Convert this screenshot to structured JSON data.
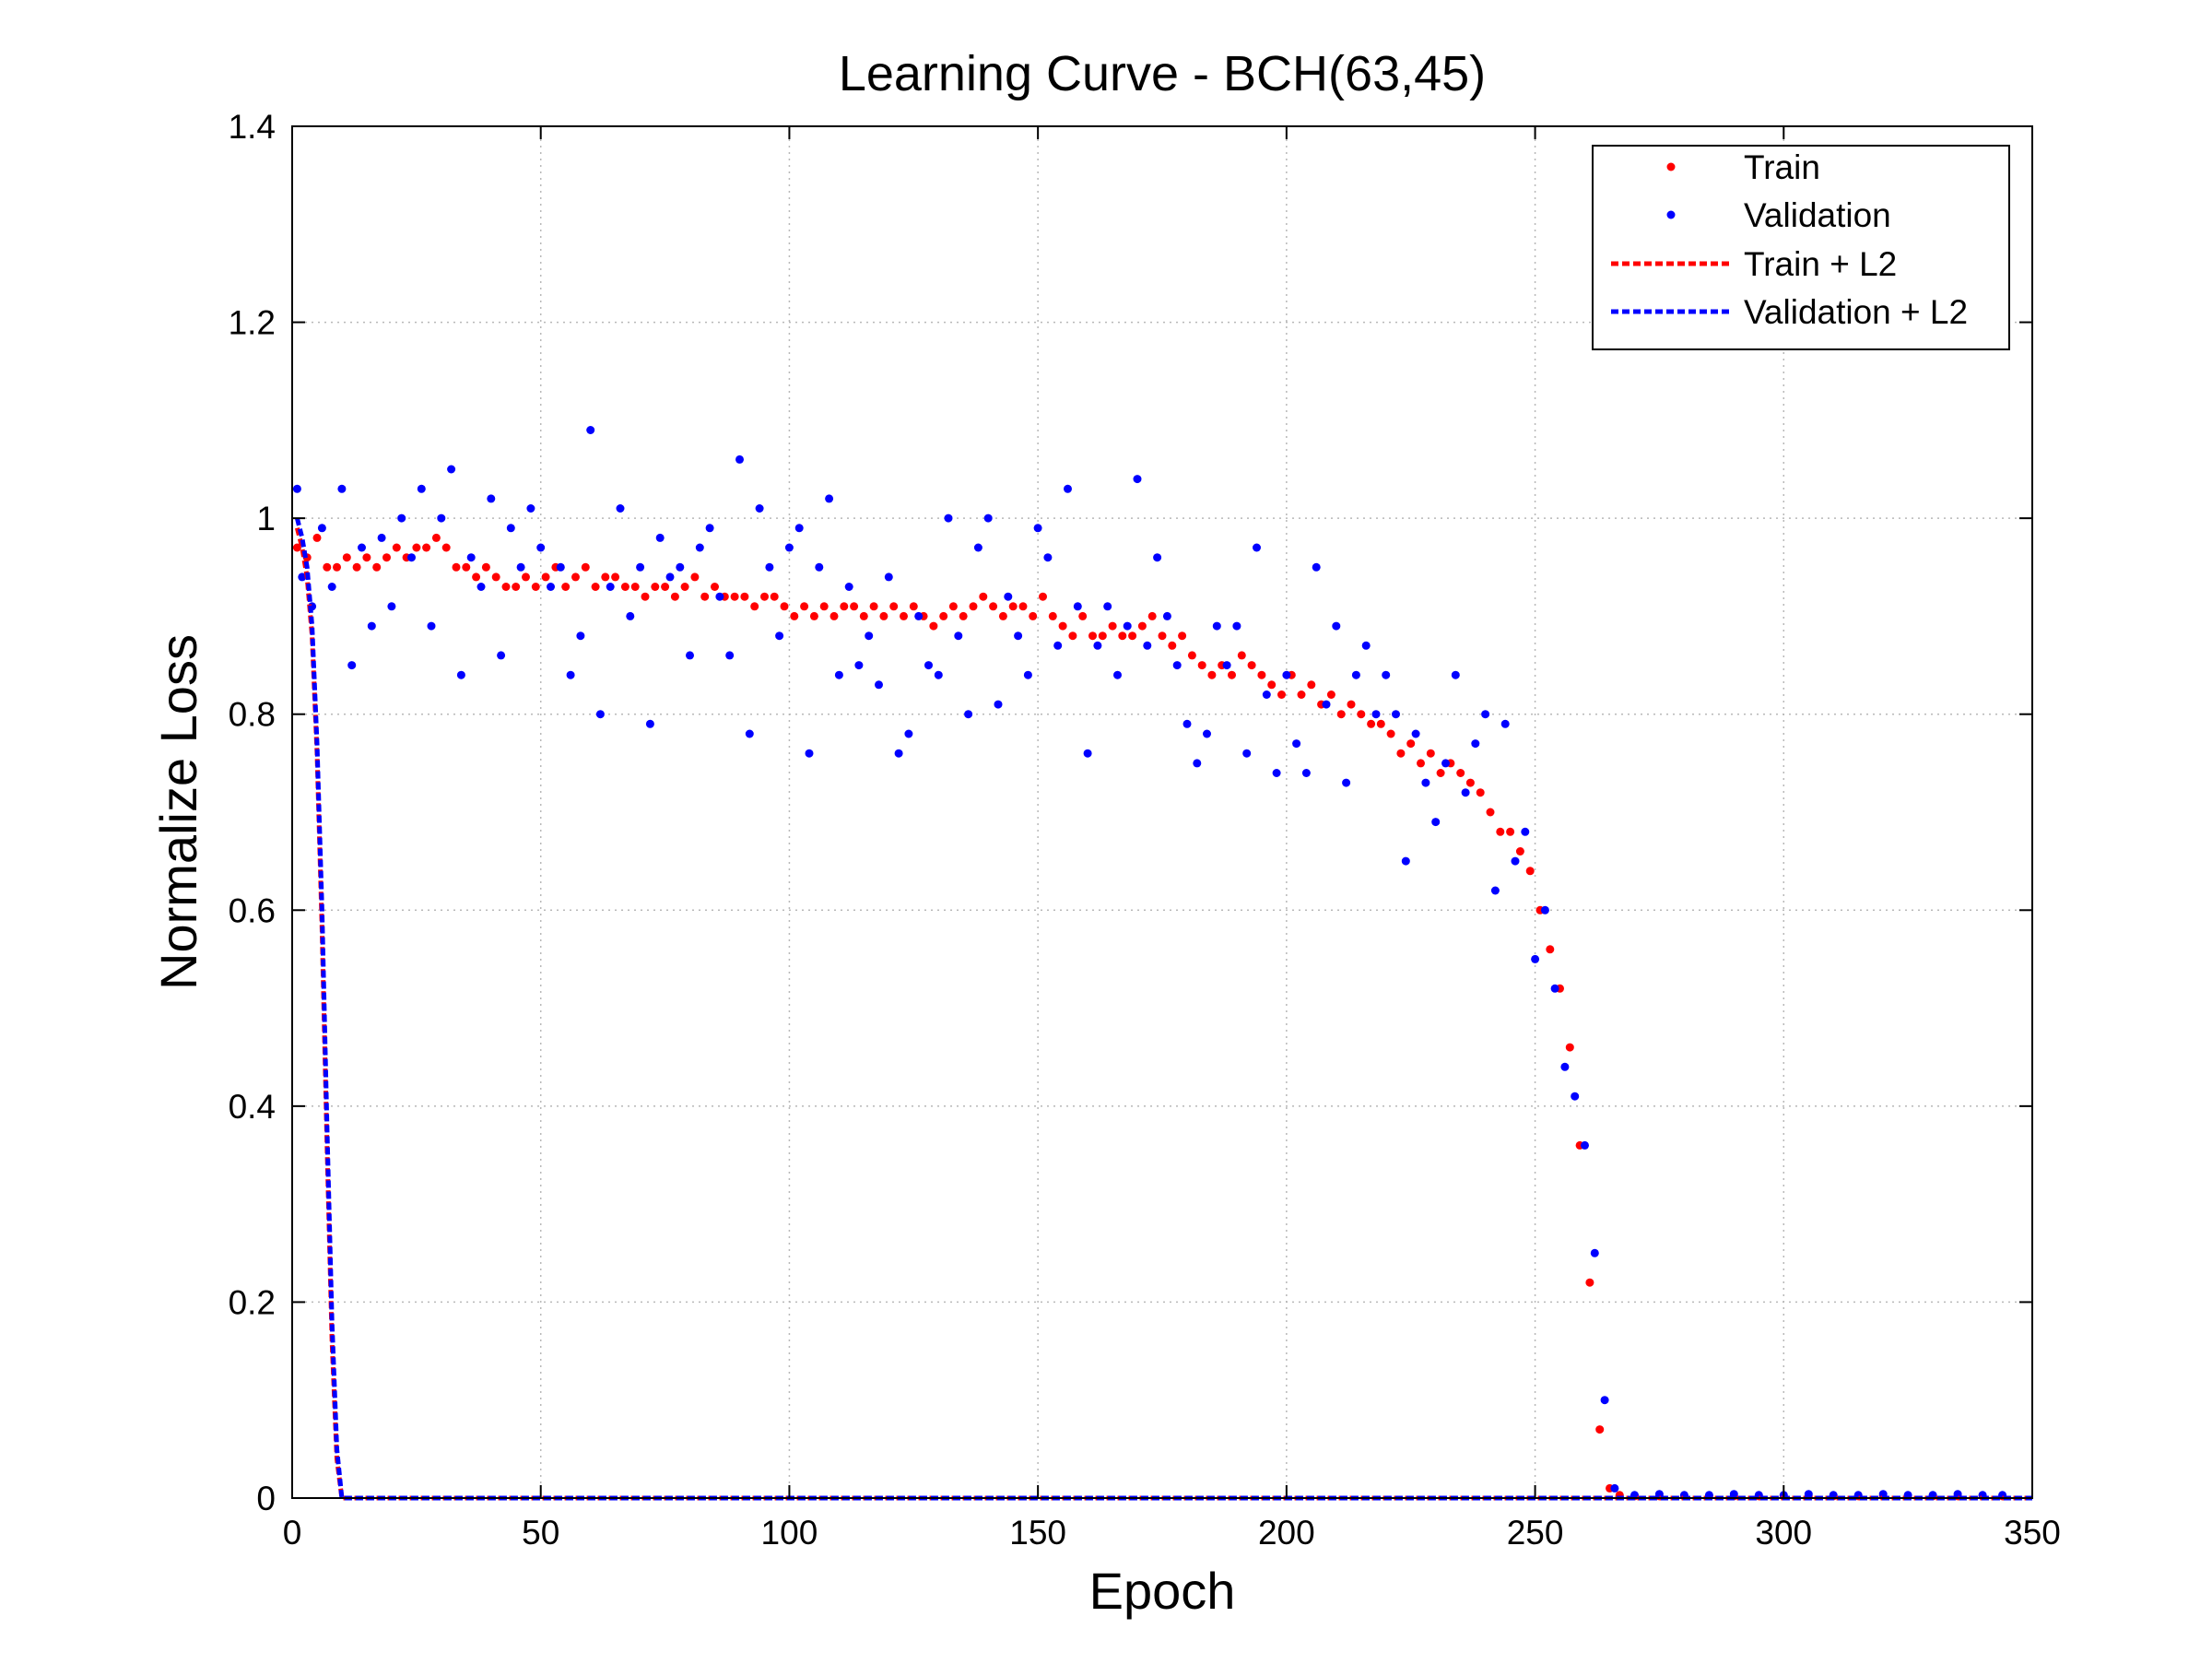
{
  "chart_data": {
    "type": "scatter",
    "title": "Learning Curve - BCH(63,45)",
    "xlabel": "Epoch",
    "ylabel": "Normalize Loss",
    "xlim": [
      0,
      350
    ],
    "ylim": [
      0,
      1.4
    ],
    "x_ticks": [
      0,
      50,
      100,
      150,
      200,
      250,
      300,
      350
    ],
    "y_ticks": [
      0,
      0.2,
      0.4,
      0.6,
      0.8,
      1,
      1.2,
      1.4
    ],
    "x_tick_labels": [
      "0",
      "50",
      "100",
      "150",
      "200",
      "250",
      "300",
      "350"
    ],
    "y_tick_labels": [
      "0",
      "0.2",
      "0.4",
      "0.6",
      "0.8",
      "1",
      "1.2",
      "1.4"
    ],
    "grid": true,
    "legend_position": "top-right",
    "series": [
      {
        "name": "Train",
        "style": "dots",
        "color": "#ff0000",
        "x": [
          1,
          3,
          5,
          7,
          9,
          11,
          13,
          15,
          17,
          19,
          21,
          23,
          25,
          27,
          29,
          31,
          33,
          35,
          37,
          39,
          41,
          43,
          45,
          47,
          49,
          51,
          53,
          55,
          57,
          59,
          61,
          63,
          65,
          67,
          69,
          71,
          73,
          75,
          77,
          79,
          81,
          83,
          85,
          87,
          89,
          91,
          93,
          95,
          97,
          99,
          101,
          103,
          105,
          107,
          109,
          111,
          113,
          115,
          117,
          119,
          121,
          123,
          125,
          127,
          129,
          131,
          133,
          135,
          137,
          139,
          141,
          143,
          145,
          147,
          149,
          151,
          153,
          155,
          157,
          159,
          161,
          163,
          165,
          167,
          169,
          171,
          173,
          175,
          177,
          179,
          181,
          183,
          185,
          187,
          189,
          191,
          193,
          195,
          197,
          199,
          201,
          203,
          205,
          207,
          209,
          211,
          213,
          215,
          217,
          219,
          221,
          223,
          225,
          227,
          229,
          231,
          233,
          235,
          237,
          239,
          241,
          243,
          245,
          247,
          249,
          251,
          253,
          255,
          257,
          259,
          261,
          263,
          265,
          267,
          270,
          275,
          280,
          285,
          290,
          295,
          300,
          305,
          310,
          315,
          320,
          325,
          330,
          335,
          340,
          344
        ],
        "y": [
          0.97,
          0.96,
          0.98,
          0.95,
          0.95,
          0.96,
          0.95,
          0.96,
          0.95,
          0.96,
          0.97,
          0.96,
          0.97,
          0.97,
          0.98,
          0.97,
          0.95,
          0.95,
          0.94,
          0.95,
          0.94,
          0.93,
          0.93,
          0.94,
          0.93,
          0.94,
          0.95,
          0.93,
          0.94,
          0.95,
          0.93,
          0.94,
          0.94,
          0.93,
          0.93,
          0.92,
          0.93,
          0.93,
          0.92,
          0.93,
          0.94,
          0.92,
          0.93,
          0.92,
          0.92,
          0.92,
          0.91,
          0.92,
          0.92,
          0.91,
          0.9,
          0.91,
          0.9,
          0.91,
          0.9,
          0.91,
          0.91,
          0.9,
          0.91,
          0.9,
          0.91,
          0.9,
          0.91,
          0.9,
          0.89,
          0.9,
          0.91,
          0.9,
          0.91,
          0.92,
          0.91,
          0.9,
          0.91,
          0.91,
          0.9,
          0.92,
          0.9,
          0.89,
          0.88,
          0.9,
          0.88,
          0.88,
          0.89,
          0.88,
          0.88,
          0.89,
          0.9,
          0.88,
          0.87,
          0.88,
          0.86,
          0.85,
          0.84,
          0.85,
          0.84,
          0.86,
          0.85,
          0.84,
          0.83,
          0.82,
          0.84,
          0.82,
          0.83,
          0.81,
          0.82,
          0.8,
          0.81,
          0.8,
          0.79,
          0.79,
          0.78,
          0.76,
          0.77,
          0.75,
          0.76,
          0.74,
          0.75,
          0.74,
          0.73,
          0.72,
          0.7,
          0.68,
          0.68,
          0.66,
          0.64,
          0.6,
          0.56,
          0.52,
          0.46,
          0.36,
          0.22,
          0.07,
          0.01,
          0.003,
          0.002,
          0.002,
          0.002,
          0.002,
          0.002,
          0.002,
          0.002,
          0.002,
          0.002,
          0.002,
          0.002,
          0.002,
          0.002,
          0.002,
          0.002,
          0.002
        ]
      },
      {
        "name": "Validation",
        "style": "dots",
        "color": "#0000ff",
        "x": [
          1,
          2,
          4,
          6,
          8,
          10,
          12,
          14,
          16,
          18,
          20,
          22,
          24,
          26,
          28,
          30,
          32,
          34,
          36,
          38,
          40,
          42,
          44,
          46,
          48,
          50,
          52,
          54,
          56,
          58,
          60,
          62,
          64,
          66,
          68,
          70,
          72,
          74,
          76,
          78,
          80,
          82,
          84,
          86,
          88,
          90,
          92,
          94,
          96,
          98,
          100,
          102,
          104,
          106,
          108,
          110,
          112,
          114,
          116,
          118,
          120,
          122,
          124,
          126,
          128,
          130,
          132,
          134,
          136,
          138,
          140,
          142,
          144,
          146,
          148,
          150,
          152,
          154,
          156,
          158,
          160,
          162,
          164,
          166,
          168,
          170,
          172,
          174,
          176,
          178,
          180,
          182,
          184,
          186,
          188,
          190,
          192,
          194,
          196,
          198,
          200,
          202,
          204,
          206,
          208,
          210,
          212,
          214,
          216,
          218,
          220,
          222,
          224,
          226,
          228,
          230,
          232,
          234,
          236,
          238,
          240,
          242,
          244,
          246,
          248,
          250,
          252,
          254,
          256,
          258,
          260,
          262,
          264,
          266,
          270,
          275,
          280,
          285,
          290,
          295,
          300,
          305,
          310,
          315,
          320,
          325,
          330,
          335,
          340,
          344
        ],
        "y": [
          1.03,
          0.94,
          0.91,
          0.99,
          0.93,
          1.03,
          0.85,
          0.97,
          0.89,
          0.98,
          0.91,
          1.0,
          0.96,
          1.03,
          0.89,
          1.0,
          1.05,
          0.84,
          0.96,
          0.93,
          1.02,
          0.86,
          0.99,
          0.95,
          1.01,
          0.97,
          0.93,
          0.95,
          0.84,
          0.88,
          1.09,
          0.8,
          0.93,
          1.01,
          0.9,
          0.95,
          0.79,
          0.98,
          0.94,
          0.95,
          0.86,
          0.97,
          0.99,
          0.92,
          0.86,
          1.06,
          0.78,
          1.01,
          0.95,
          0.88,
          0.97,
          0.99,
          0.76,
          0.95,
          1.02,
          0.84,
          0.93,
          0.85,
          0.88,
          0.83,
          0.94,
          0.76,
          0.78,
          0.9,
          0.85,
          0.84,
          1.0,
          0.88,
          0.8,
          0.97,
          1.0,
          0.81,
          0.92,
          0.88,
          0.84,
          0.99,
          0.96,
          0.87,
          1.03,
          0.91,
          0.76,
          0.87,
          0.91,
          0.84,
          0.89,
          1.04,
          0.87,
          0.96,
          0.9,
          0.85,
          0.79,
          0.75,
          0.78,
          0.89,
          0.85,
          0.89,
          0.76,
          0.97,
          0.82,
          0.74,
          0.84,
          0.77,
          0.74,
          0.95,
          0.81,
          0.89,
          0.73,
          0.84,
          0.87,
          0.8,
          0.84,
          0.8,
          0.65,
          0.78,
          0.73,
          0.69,
          0.75,
          0.84,
          0.72,
          0.77,
          0.8,
          0.62,
          0.79,
          0.65,
          0.68,
          0.55,
          0.6,
          0.52,
          0.44,
          0.41,
          0.36,
          0.25,
          0.1,
          0.01,
          0.003,
          0.004,
          0.003,
          0.003,
          0.004,
          0.003,
          0.003,
          0.004,
          0.003,
          0.003,
          0.004,
          0.003,
          0.003,
          0.004,
          0.003,
          0.003
        ]
      },
      {
        "name": "Train + L2",
        "style": "dashed",
        "color": "#ff0000",
        "x": [
          1,
          2,
          3,
          4,
          5,
          6,
          7,
          8,
          9,
          10,
          12,
          20,
          50,
          100,
          150,
          200,
          250,
          300,
          350
        ],
        "y": [
          0.99,
          0.97,
          0.94,
          0.88,
          0.76,
          0.58,
          0.36,
          0.16,
          0.04,
          0.0,
          0.0,
          0.0,
          0.0,
          0.0,
          0.0,
          0.0,
          0.0,
          0.0,
          0.0
        ]
      },
      {
        "name": "Validation + L2",
        "style": "dashed",
        "color": "#0000ff",
        "x": [
          1,
          2,
          3,
          4,
          5,
          6,
          7,
          8,
          9,
          10,
          12,
          20,
          50,
          100,
          150,
          200,
          250,
          300,
          350
        ],
        "y": [
          1.0,
          0.98,
          0.95,
          0.89,
          0.77,
          0.6,
          0.38,
          0.18,
          0.05,
          0.0,
          0.0,
          0.0,
          0.0,
          0.0,
          0.0,
          0.0,
          0.0,
          0.0,
          0.0
        ]
      }
    ]
  }
}
